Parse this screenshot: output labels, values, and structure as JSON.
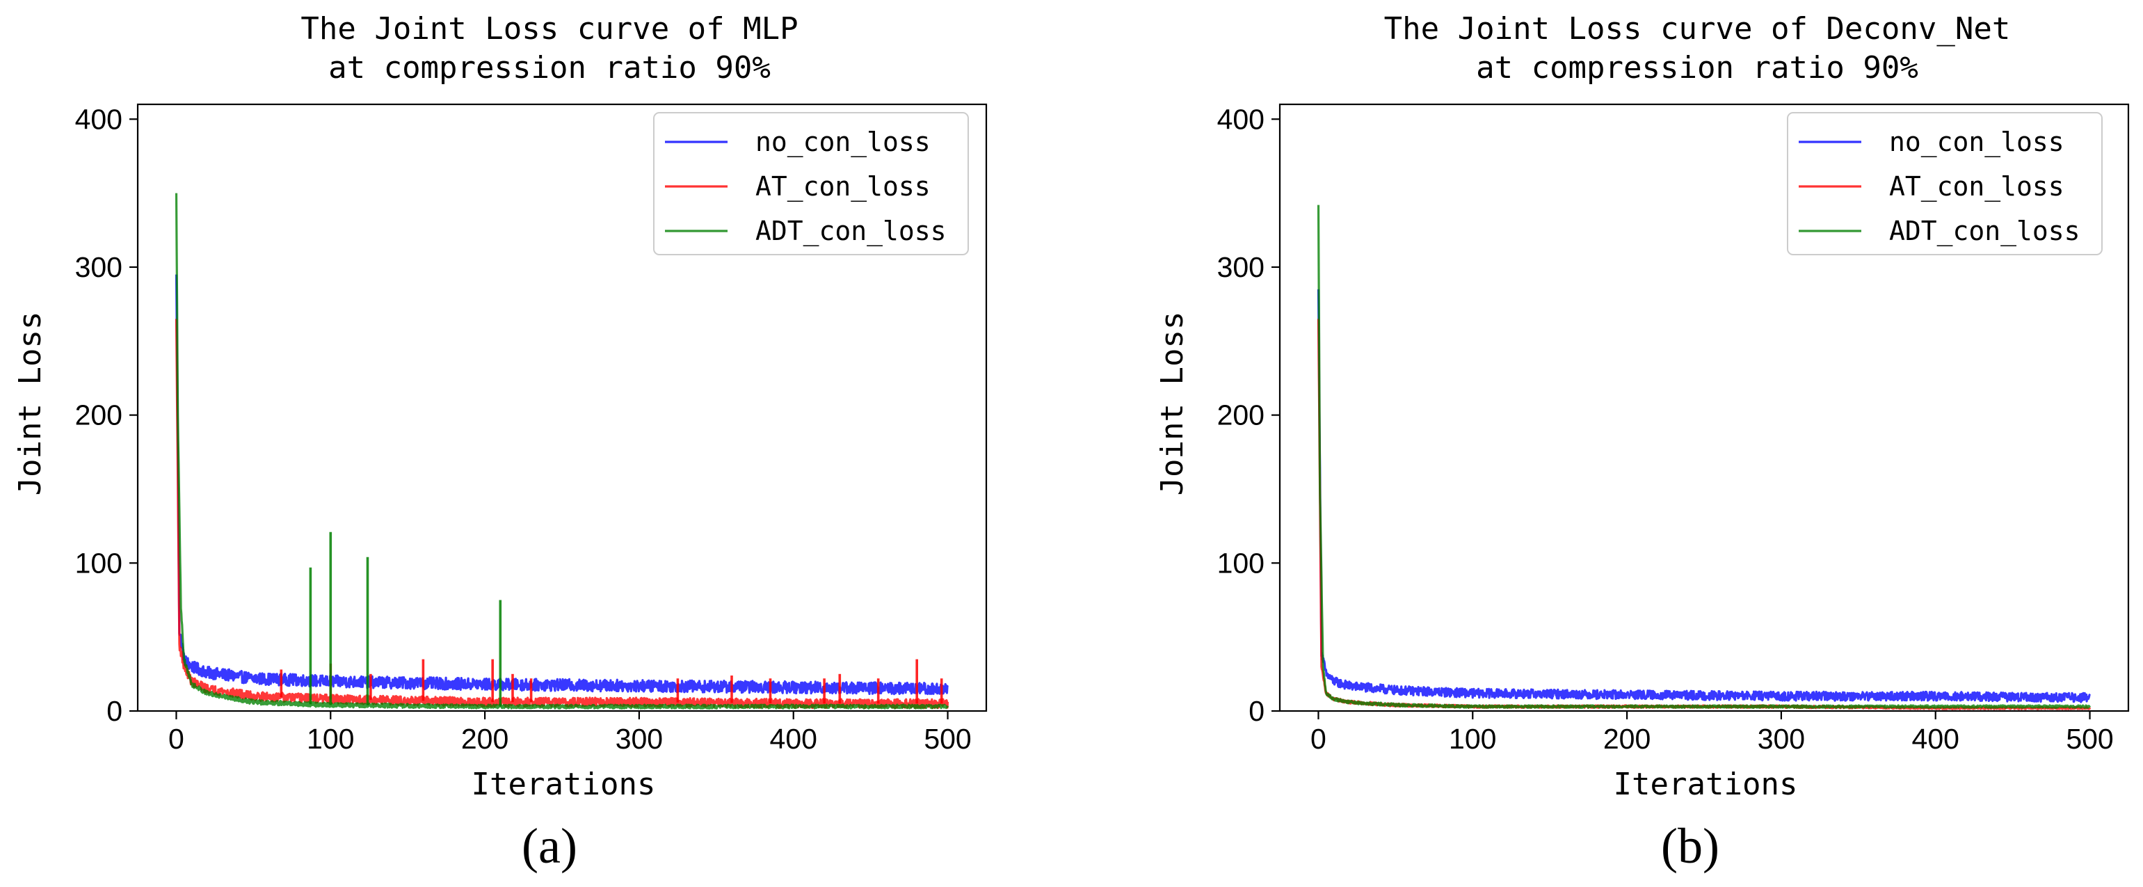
{
  "chart_data": [
    {
      "type": "line",
      "panel_label": "(a)",
      "title": "The Joint Loss curve of MLP",
      "subtitle": "at compression ratio 90%",
      "xlabel": "Iterations",
      "ylabel": "Joint Loss",
      "xlim": [
        -25,
        525
      ],
      "ylim": [
        0,
        410
      ],
      "xticks": [
        0,
        100,
        200,
        300,
        400,
        500
      ],
      "yticks": [
        0,
        100,
        200,
        300,
        400
      ],
      "grid": false,
      "legend_position": "top-right",
      "series": [
        {
          "name": "no_con_loss",
          "color": "#0000ff",
          "peak": 295,
          "values": [
            [
              0,
              295
            ],
            [
              2,
              55
            ],
            [
              5,
              35
            ],
            [
              10,
              30
            ],
            [
              20,
              26
            ],
            [
              50,
              22
            ],
            [
              100,
              20
            ],
            [
              150,
              19
            ],
            [
              200,
              18
            ],
            [
              300,
              17
            ],
            [
              400,
              16
            ],
            [
              500,
              15
            ]
          ],
          "noise_band": 4,
          "spikes": []
        },
        {
          "name": "AT_con_loss",
          "color": "#ff0000",
          "peak": 265,
          "values": [
            [
              0,
              265
            ],
            [
              2,
              45
            ],
            [
              5,
              30
            ],
            [
              10,
              20
            ],
            [
              20,
              15
            ],
            [
              50,
              10
            ],
            [
              100,
              8
            ],
            [
              150,
              7
            ],
            [
              200,
              6
            ],
            [
              300,
              6
            ],
            [
              400,
              5
            ],
            [
              500,
              5
            ]
          ],
          "noise_band": 3,
          "spikes": [
            [
              68,
              28
            ],
            [
              100,
              32
            ],
            [
              126,
              25
            ],
            [
              160,
              35
            ],
            [
              205,
              35
            ],
            [
              218,
              25
            ],
            [
              230,
              22
            ],
            [
              325,
              22
            ],
            [
              360,
              24
            ],
            [
              385,
              22
            ],
            [
              420,
              22
            ],
            [
              430,
              25
            ],
            [
              455,
              22
            ],
            [
              480,
              35
            ],
            [
              496,
              22
            ]
          ]
        },
        {
          "name": "ADT_con_loss",
          "color": "#008000",
          "peak": 350,
          "values": [
            [
              0,
              350
            ],
            [
              1,
              200
            ],
            [
              3,
              70
            ],
            [
              5,
              35
            ],
            [
              10,
              18
            ],
            [
              20,
              12
            ],
            [
              50,
              6
            ],
            [
              100,
              4
            ],
            [
              200,
              3
            ],
            [
              300,
              3
            ],
            [
              400,
              3
            ],
            [
              500,
              3
            ]
          ],
          "noise_band": 1.5,
          "spikes": [
            [
              87,
              97
            ],
            [
              100,
              121
            ],
            [
              124,
              104
            ],
            [
              210,
              75
            ]
          ]
        }
      ]
    },
    {
      "type": "line",
      "panel_label": "(b)",
      "title": "The Joint Loss curve of Deconv_Net",
      "subtitle": "at compression ratio 90%",
      "xlabel": "Iterations",
      "ylabel": "Joint Loss",
      "xlim": [
        -25,
        525
      ],
      "ylim": [
        0,
        410
      ],
      "xticks": [
        0,
        100,
        200,
        300,
        400,
        500
      ],
      "yticks": [
        0,
        100,
        200,
        300,
        400
      ],
      "grid": false,
      "legend_position": "top-right",
      "series": [
        {
          "name": "no_con_loss",
          "color": "#0000ff",
          "peak": 285,
          "values": [
            [
              0,
              285
            ],
            [
              2,
              40
            ],
            [
              5,
              25
            ],
            [
              10,
              20
            ],
            [
              20,
              17
            ],
            [
              50,
              14
            ],
            [
              100,
              12
            ],
            [
              200,
              11
            ],
            [
              300,
              10
            ],
            [
              400,
              10
            ],
            [
              500,
              9
            ]
          ],
          "noise_band": 3,
          "spikes": []
        },
        {
          "name": "AT_con_loss",
          "color": "#ff0000",
          "peak": 265,
          "values": [
            [
              0,
              265
            ],
            [
              2,
              30
            ],
            [
              5,
              12
            ],
            [
              10,
              8
            ],
            [
              20,
              6
            ],
            [
              50,
              4
            ],
            [
              100,
              3
            ],
            [
              200,
              3
            ],
            [
              300,
              3
            ],
            [
              400,
              2
            ],
            [
              500,
              2
            ]
          ],
          "noise_band": 1,
          "spikes": []
        },
        {
          "name": "ADT_con_loss",
          "color": "#008000",
          "peak": 342,
          "values": [
            [
              0,
              342
            ],
            [
              1,
              150
            ],
            [
              3,
              30
            ],
            [
              5,
              12
            ],
            [
              10,
              8
            ],
            [
              20,
              6
            ],
            [
              50,
              4
            ],
            [
              100,
              3
            ],
            [
              200,
              3
            ],
            [
              300,
              3
            ],
            [
              400,
              3
            ],
            [
              500,
              3
            ]
          ],
          "noise_band": 1,
          "spikes": []
        }
      ]
    }
  ]
}
